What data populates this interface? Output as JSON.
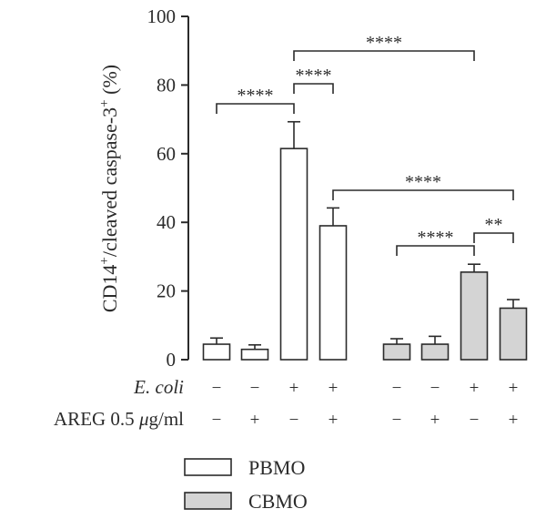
{
  "chart_data": {
    "type": "bar",
    "ylabel": "CD14⁺/cleaved caspase-3⁺ (%)",
    "ylabel_parts": {
      "main": "CD14",
      "sup1": "+",
      "mid": "/cleaved caspase-3",
      "sup2": "+",
      "unit": " (%)"
    },
    "ylim": [
      0,
      100
    ],
    "yticks": [
      "0",
      "20",
      "40",
      "60",
      "80",
      "100"
    ],
    "grid": false,
    "legend_position": "bottom",
    "series": [
      {
        "name": "PBMO",
        "color": "#ffffff",
        "values": [
          4.5,
          3.0,
          61.5,
          39.0
        ],
        "errors": [
          1.8,
          1.3,
          7.8,
          5.2
        ]
      },
      {
        "name": "CBMO",
        "color": "#d4d4d4",
        "values": [
          4.5,
          4.5,
          25.5,
          15.0
        ],
        "errors": [
          1.6,
          2.3,
          2.3,
          2.5
        ]
      }
    ],
    "conditions": {
      "rows": [
        {
          "label": "E. coli",
          "label_style": "italic",
          "values": [
            "−",
            "−",
            "+",
            "+",
            "−",
            "−",
            "+",
            "+"
          ]
        },
        {
          "label_main": "AREG 0.5 ",
          "label_unit_italic": "μ",
          "label_tail": "g/ml",
          "values": [
            "−",
            "+",
            "−",
            "+",
            "−",
            "+",
            "−",
            "+"
          ]
        }
      ]
    },
    "annotations": [
      {
        "from_bar": 0,
        "to_bar": 2,
        "label": "****"
      },
      {
        "from_bar": 2,
        "to_bar": 3,
        "label": "****"
      },
      {
        "from_bar": 2,
        "to_bar": 6,
        "label": "****"
      },
      {
        "from_bar": 3,
        "to_bar": 7,
        "label": "****"
      },
      {
        "from_bar": 4,
        "to_bar": 6,
        "label": "****"
      },
      {
        "from_bar": 6,
        "to_bar": 7,
        "label": "**"
      }
    ]
  }
}
